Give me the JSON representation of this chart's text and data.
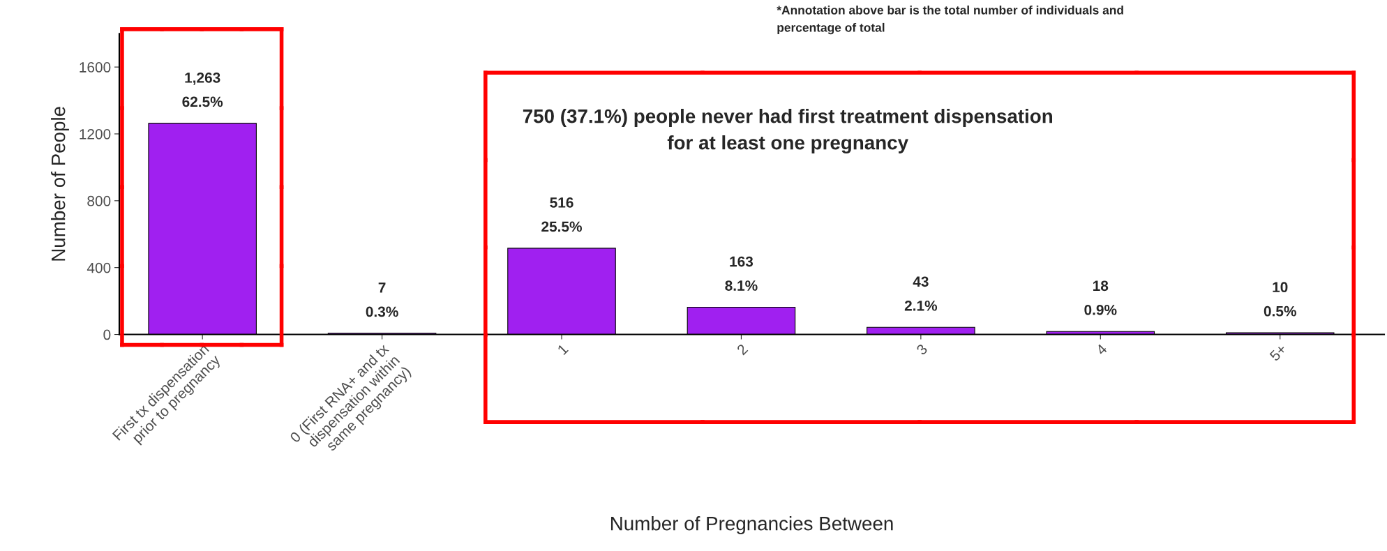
{
  "chart_data": {
    "type": "bar",
    "categories": [
      "First tx dispensation\nprior to pregnancy",
      "0 (First RNA+ and tx\ndispensation within\nsame pregnancy)",
      "1",
      "2",
      "3",
      "4",
      "5+"
    ],
    "values": [
      1263,
      7,
      516,
      163,
      43,
      18,
      10
    ],
    "value_labels": [
      "1,263\n62.5%",
      "7\n0.3%",
      "516\n25.5%",
      "163\n8.1%",
      "43\n2.1%",
      "18\n0.9%",
      "10\n0.5%"
    ],
    "color": "#a020f0",
    "xlabel": "Number of Pregnancies Between",
    "ylabel": "Number of People",
    "ylim": [
      0,
      1800
    ],
    "yticks": [
      0,
      400,
      800,
      1200,
      1600
    ],
    "grid": false,
    "legend": false,
    "annotations": [
      "750 (37.1%) people never had first treatment dispensation\nfor at least one pregnancy",
      "*Annotation above bar is the total number of individuals and\npercentage of total"
    ]
  }
}
